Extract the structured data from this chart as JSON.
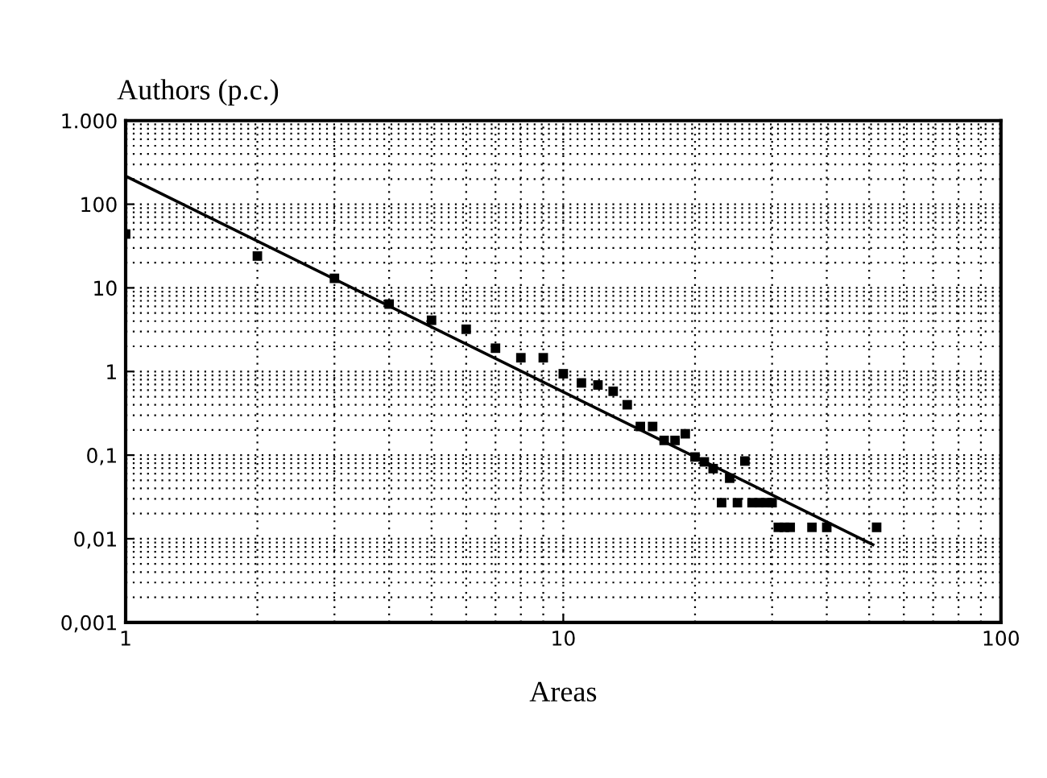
{
  "chart_data": {
    "type": "scatter",
    "xlabel": "Areas",
    "ylabel": "Authors (p.c.)",
    "log": "xy",
    "grid": true,
    "xlim": [
      1,
      100
    ],
    "xticks": [
      1,
      10,
      100
    ],
    "ylim": [
      0.001,
      1000
    ],
    "yticks": [
      {
        "value": 0.001,
        "label": "0,001"
      },
      {
        "value": 0.01,
        "label": "0,01"
      },
      {
        "value": 0.1,
        "label": "0,1"
      },
      1,
      10,
      100,
      {
        "value": 1000,
        "label": "1.000"
      }
    ],
    "series": [
      {
        "marker": "square",
        "color": "#000000",
        "x": [
          1,
          2,
          3,
          4,
          5,
          6,
          7,
          8,
          9,
          10,
          11,
          12,
          13,
          14,
          15,
          16,
          17,
          18,
          19,
          20,
          21,
          22,
          23,
          24,
          25,
          26,
          27,
          28,
          29,
          30,
          31,
          32,
          33,
          37,
          40,
          52
        ],
        "values": [
          44,
          24,
          13,
          6.4,
          4.1,
          3.2,
          1.9,
          1.46,
          1.46,
          0.94,
          0.73,
          0.69,
          0.58,
          0.4,
          0.22,
          0.22,
          0.15,
          0.15,
          0.18,
          0.095,
          0.083,
          0.069,
          0.027,
          0.053,
          0.027,
          0.085,
          0.027,
          0.027,
          0.027,
          0.027,
          0.0137,
          0.0137,
          0.0137,
          0.0137,
          0.0137,
          0.0137
        ]
      },
      {
        "type": "line",
        "color": "#000000",
        "x": [
          1,
          51
        ],
        "values": [
          217,
          0.0085
        ]
      }
    ]
  }
}
